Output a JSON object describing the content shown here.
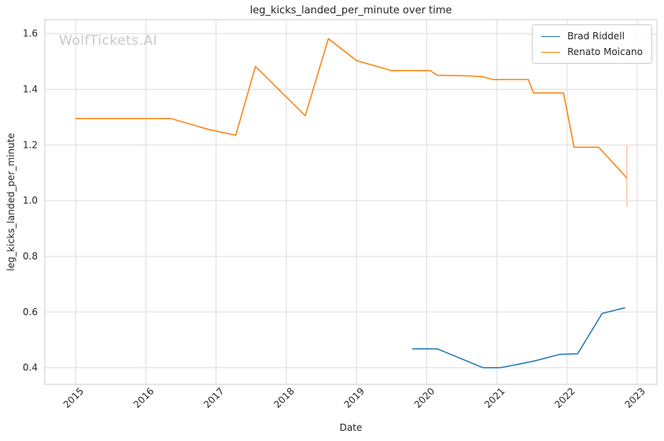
{
  "watermark": "WolfTickets.AI",
  "chart_data": {
    "type": "line",
    "title": "leg_kicks_landed_per_minute over time",
    "xlabel": "Date",
    "ylabel": "leg_kicks_landed_per_minute",
    "xlim": [
      2014.56,
      2023.28
    ],
    "ylim": [
      0.34,
      1.65
    ],
    "xticks": [
      2015,
      2016,
      2017,
      2018,
      2019,
      2020,
      2021,
      2022,
      2023
    ],
    "yticks": [
      0.4,
      0.6,
      0.8,
      1.0,
      1.2,
      1.4,
      1.6
    ],
    "grid": true,
    "legend_position": "upper right",
    "series": [
      {
        "name": "Brad Riddell",
        "color": "#1f77b4",
        "x": [
          2019.8,
          2020.15,
          2020.8,
          2021.05,
          2021.3,
          2021.55,
          2021.9,
          2022.15,
          2022.5,
          2022.82
        ],
        "y": [
          0.468,
          0.468,
          0.4,
          0.4,
          0.412,
          0.425,
          0.448,
          0.45,
          0.595,
          0.615
        ]
      },
      {
        "name": "Renato Moicano",
        "color": "#ff7f0e",
        "x": [
          2015.0,
          2016.35,
          2016.9,
          2017.28,
          2017.56,
          2018.27,
          2018.6,
          2019.0,
          2019.5,
          2020.05,
          2020.15,
          2020.6,
          2020.8,
          2020.95,
          2021.45,
          2021.52,
          2021.95,
          2022.1,
          2022.45,
          2022.85
        ],
        "y": [
          1.295,
          1.295,
          1.255,
          1.235,
          1.482,
          1.305,
          1.582,
          1.503,
          1.467,
          1.467,
          1.45,
          1.448,
          1.445,
          1.435,
          1.435,
          1.387,
          1.387,
          1.192,
          1.192,
          1.082
        ]
      }
    ],
    "error_bars": [
      {
        "series": "Renato Moicano",
        "x": 2022.85,
        "y_low": 0.98,
        "y_high": 1.2,
        "color": "#ffc5a0"
      }
    ]
  }
}
